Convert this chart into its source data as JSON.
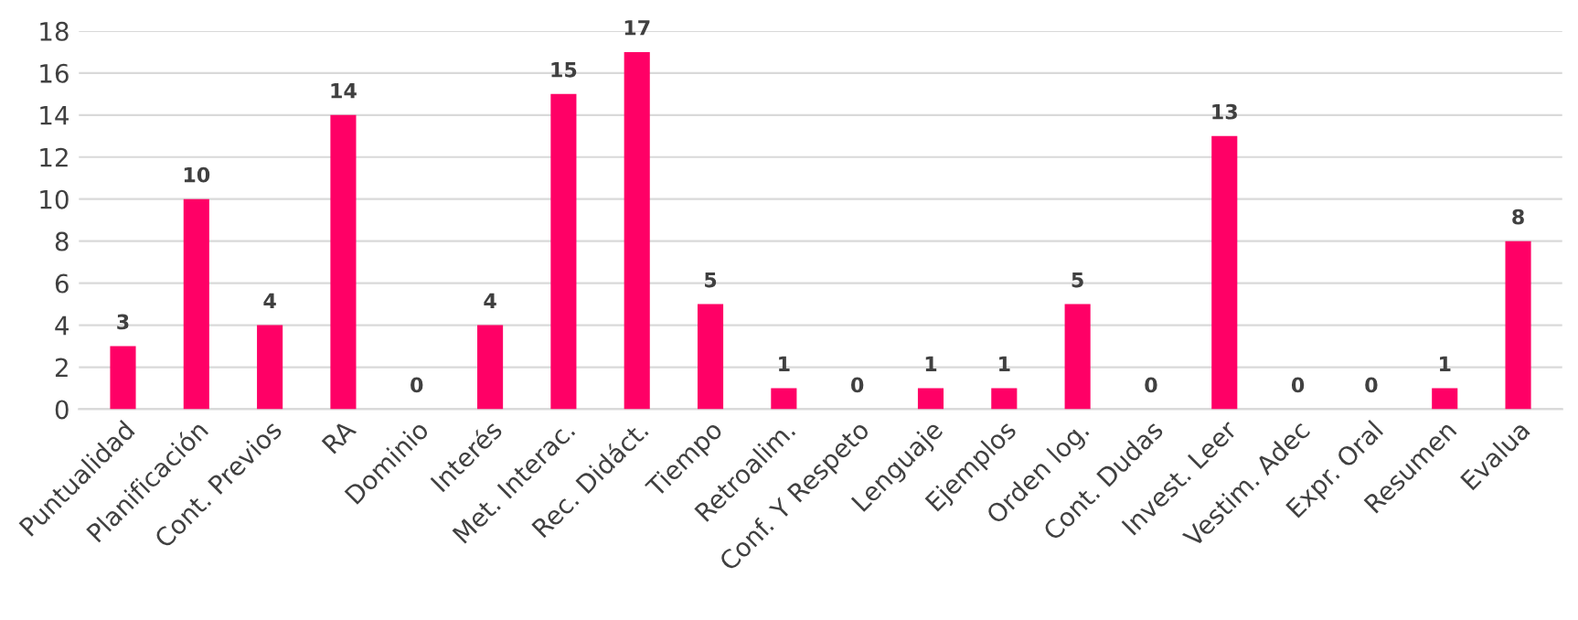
{
  "chart_data": {
    "type": "bar",
    "categories": [
      "Puntualidad",
      "Planificación",
      "Cont. Previos",
      "RA",
      "Dominio",
      "Interés",
      "Met. Interac.",
      "Rec. Didáct.",
      "Tiempo",
      "Retroalim.",
      "Conf. Y Respeto",
      "Lenguaje",
      "Ejemplos",
      "Orden log.",
      "Cont. Dudas",
      "Invest. Leer",
      "Vestim. Adec",
      "Expr. Oral",
      "Resumen",
      "Evalua"
    ],
    "values": [
      3,
      10,
      4,
      14,
      0,
      4,
      15,
      17,
      5,
      1,
      0,
      1,
      1,
      5,
      0,
      13,
      0,
      0,
      1,
      8
    ],
    "color": "#ff0066",
    "ylim": [
      0,
      18
    ],
    "yticks": [
      0,
      2,
      4,
      6,
      8,
      10,
      12,
      14,
      16,
      18
    ],
    "grid": "y",
    "data_labels": true
  }
}
